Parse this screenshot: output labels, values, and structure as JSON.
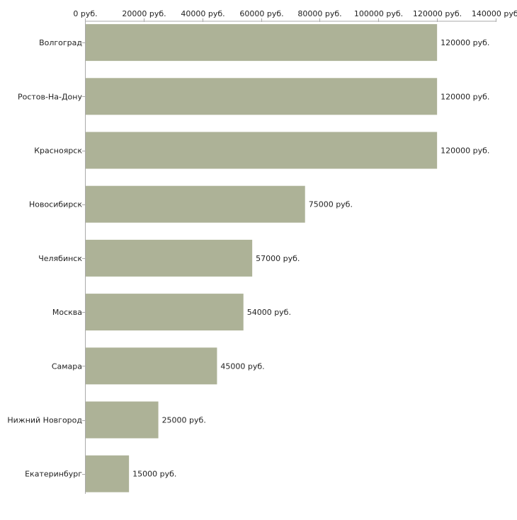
{
  "chart_data": {
    "type": "bar",
    "orientation": "horizontal",
    "categories": [
      "Волгоград",
      "Ростов-На-Дону",
      "Красноярск",
      "Новосибирск",
      "Челябинск",
      "Москва",
      "Самара",
      "Нижний Новгород",
      "Екатеринбург"
    ],
    "values": [
      120000,
      120000,
      120000,
      75000,
      57000,
      54000,
      45000,
      25000,
      15000
    ],
    "value_labels": [
      "120000 руб.",
      "120000 руб.",
      "120000 руб.",
      "75000 руб.",
      "57000 руб.",
      "54000 руб.",
      "45000 руб.",
      "25000 руб.",
      "15000 руб."
    ],
    "xlim": [
      0,
      140000
    ],
    "x_ticks": [
      0,
      20000,
      40000,
      60000,
      80000,
      100000,
      120000,
      140000
    ],
    "x_tick_labels": [
      "0 руб.",
      "20000 руб.",
      "40000 руб.",
      "60000 руб.",
      "80000 руб.",
      "100000 руб.",
      "120000 руб.",
      "140000 руб."
    ],
    "x_axis_position": "top",
    "grid": false,
    "title": "",
    "xlabel": "",
    "ylabel": "",
    "bar_color": "#adb297",
    "axis_color": "#aaaaaa"
  }
}
